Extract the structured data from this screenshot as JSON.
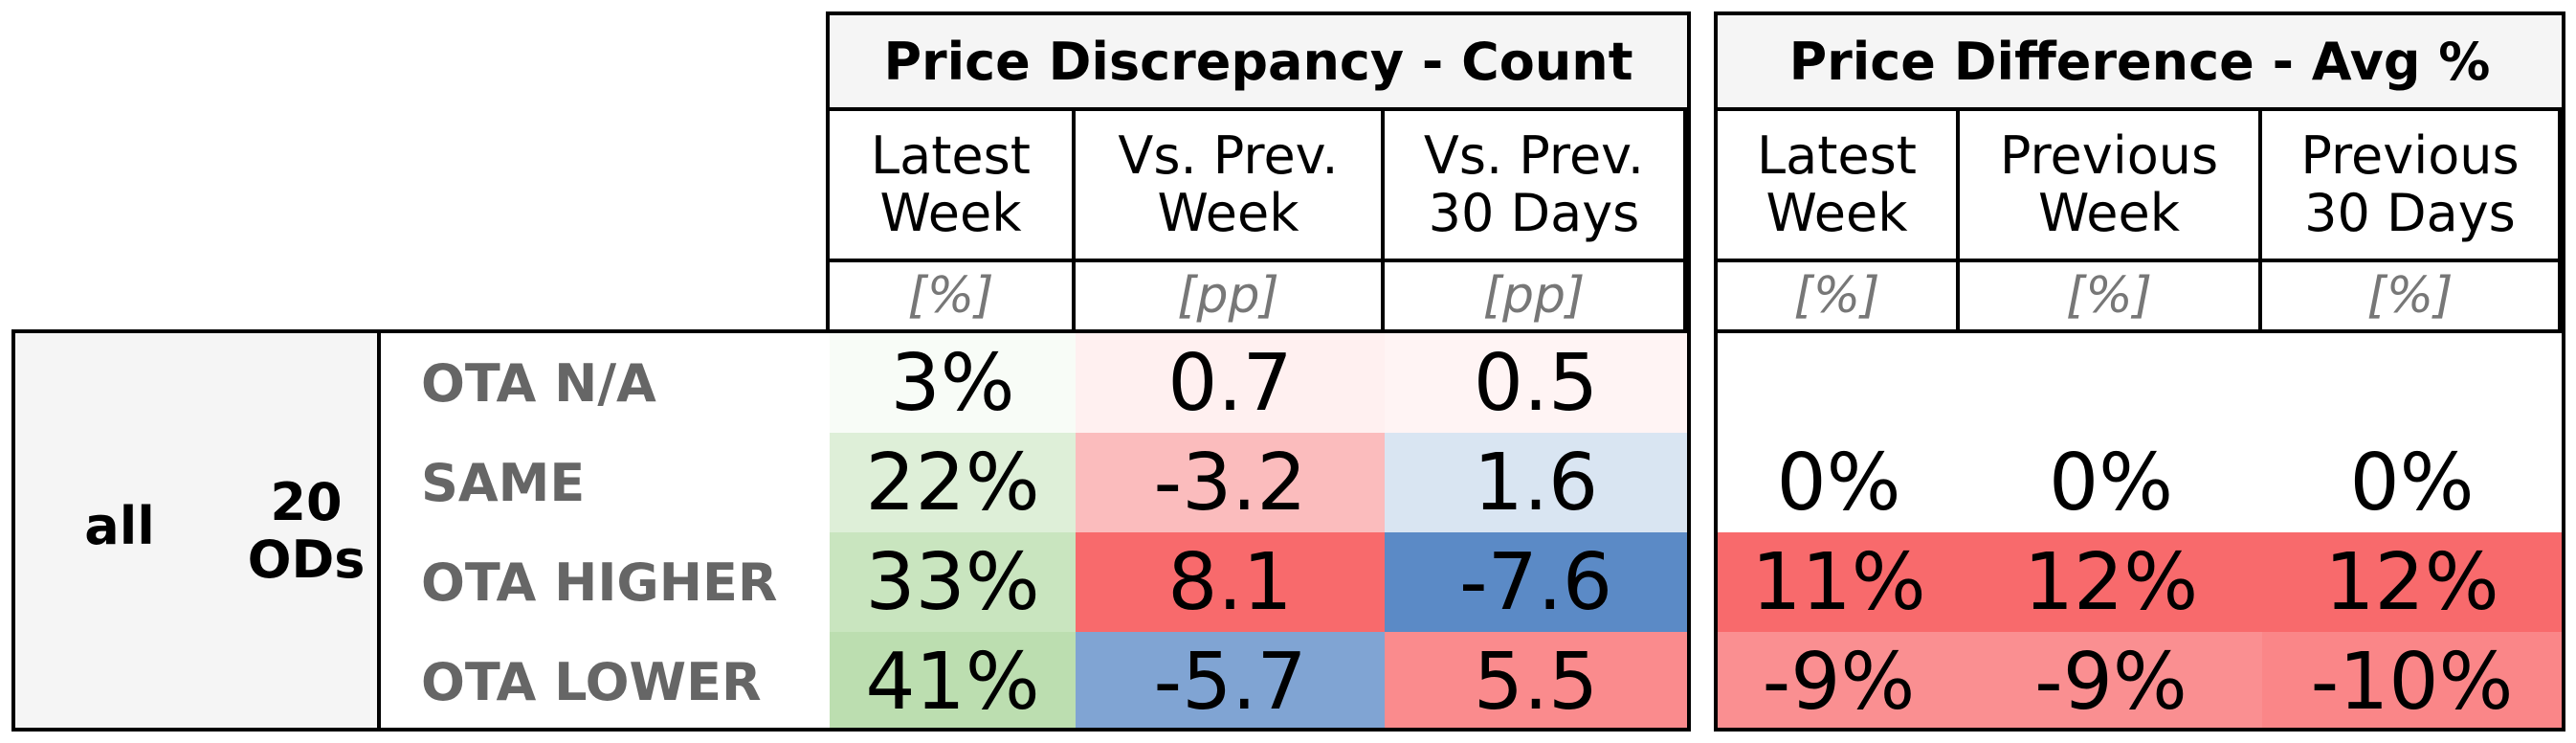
{
  "groups": {
    "count_title": "Price Discrepancy - Count",
    "avg_title": "Price Difference - Avg %"
  },
  "columns": [
    {
      "label": "Latest\nWeek",
      "unit": "[%]"
    },
    {
      "label": "Vs. Prev.\nWeek",
      "unit": "[pp]"
    },
    {
      "label": "Vs. Prev.\n30 Days",
      "unit": "[pp]"
    },
    {
      "label": "Latest\nWeek",
      "unit": "[%]"
    },
    {
      "label": "Previous\nWeek",
      "unit": "[%]"
    },
    {
      "label": "Previous\n30 Days",
      "unit": "[%]"
    }
  ],
  "segment": {
    "label": "all",
    "sublabel": "20\nODs"
  },
  "rows": [
    {
      "label": "OTA N/A",
      "values": [
        "3%",
        "0.7",
        "0.5",
        "",
        "",
        ""
      ]
    },
    {
      "label": "SAME",
      "values": [
        "22%",
        "-3.2",
        "1.6",
        "0%",
        "0%",
        "0%"
      ]
    },
    {
      "label": "OTA HIGHER",
      "values": [
        "33%",
        "8.1",
        "-7.6",
        "11%",
        "12%",
        "12%"
      ]
    },
    {
      "label": "OTA LOWER",
      "values": [
        "41%",
        "-5.7",
        "5.5",
        "-9%",
        "-9%",
        "-10%"
      ]
    }
  ],
  "colors": [
    [
      "#f8fcf7",
      "#fff0f0",
      "#fff4f4",
      "#ffffff",
      "#ffffff",
      "#ffffff"
    ],
    [
      "#deefd8",
      "#fbbcbd",
      "#d9e5f2",
      "#ffffff",
      "#ffffff",
      "#ffffff"
    ],
    [
      "#c9e5bf",
      "#f86a6c",
      "#5b8ac6",
      "#f86a6c",
      "#f86a6c",
      "#f86a6c"
    ],
    [
      "#bcdeb0",
      "#80a4d3",
      "#fa8b8d",
      "#fa8f91",
      "#fa8f91",
      "#fa8688"
    ]
  ]
}
